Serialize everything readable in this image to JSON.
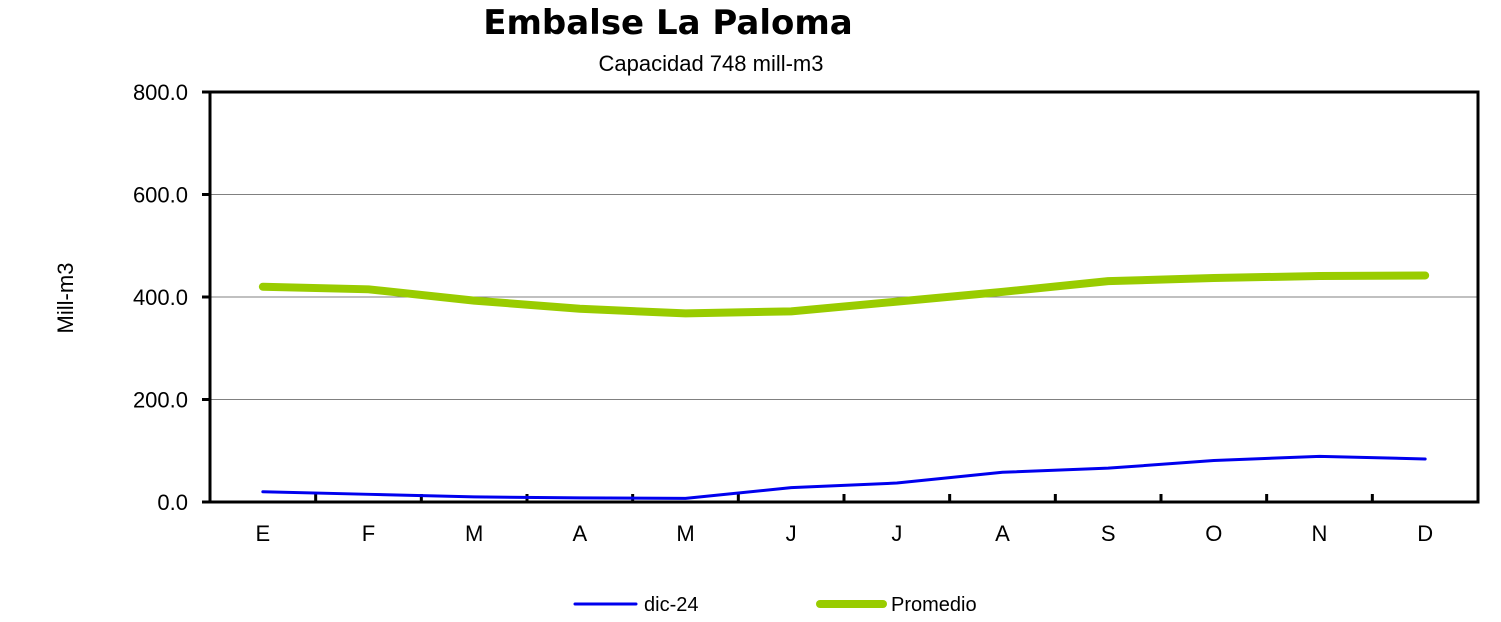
{
  "chart_data": {
    "type": "line",
    "title": "Embalse La Paloma",
    "subtitle": "Capacidad 748 mill-m3",
    "ylabel": "Mill-m3",
    "xlabel": "",
    "ylim": [
      0,
      800
    ],
    "yticks": [
      "0.0",
      "200.0",
      "400.0",
      "600.0",
      "800.0"
    ],
    "ytick_values": [
      0,
      200,
      400,
      600,
      800
    ],
    "categories": [
      "E",
      "F",
      "M",
      "A",
      "M",
      "J",
      "J",
      "A",
      "S",
      "O",
      "N",
      "D"
    ],
    "grid": true,
    "legend_position": "bottom",
    "series": [
      {
        "name": "dic-24",
        "color": "#0000ee",
        "values": [
          20,
          15,
          10,
          8,
          7,
          28,
          37,
          58,
          66,
          81,
          89,
          84
        ]
      },
      {
        "name": "Promedio",
        "color": "#99cc00",
        "values": [
          420,
          415,
          393,
          377,
          368,
          372,
          391,
          410,
          431,
          437,
          441,
          442
        ]
      }
    ]
  }
}
